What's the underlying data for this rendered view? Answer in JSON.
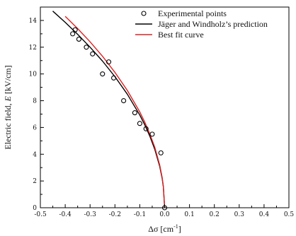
{
  "chart_data": {
    "type": "scatter",
    "xlabel_main": "Δσ [cm",
    "xlabel_sup": "-1",
    "xlabel_end": "]",
    "ylabel_prefix": "Electric field, ",
    "ylabel_var": "E",
    "ylabel_suffix": " [kV/cm]",
    "xlim": [
      -0.5,
      0.5
    ],
    "ylim": [
      0,
      15
    ],
    "xticks": [
      -0.5,
      -0.4,
      -0.3,
      -0.2,
      -0.1,
      0.0,
      0.1,
      0.2,
      0.3,
      0.4,
      0.5
    ],
    "xtick_labels": [
      "-0.5",
      "-0.4",
      "-0.3",
      "-0.2",
      "-0.1",
      "0.0",
      "0.1",
      "0.2",
      "0.3",
      "0.4",
      "0.5"
    ],
    "yticks": [
      0,
      2,
      4,
      6,
      8,
      10,
      12,
      14
    ],
    "ytick_labels": [
      "0",
      "2",
      "4",
      "6",
      "8",
      "10",
      "12",
      "14"
    ],
    "grid": false,
    "legend_position": "top-right",
    "series": [
      {
        "name": "Experimental points",
        "kind": "scatter",
        "marker": "open-circle",
        "color": "#000000",
        "x": [
          -0.37,
          -0.36,
          -0.345,
          -0.315,
          -0.29,
          -0.25,
          -0.225,
          -0.205,
          -0.165,
          -0.12,
          -0.1,
          -0.075,
          -0.05,
          -0.015,
          0.0
        ],
        "y": [
          13.0,
          13.3,
          12.6,
          12.0,
          11.5,
          10.0,
          10.9,
          9.7,
          8.0,
          7.1,
          6.3,
          5.9,
          5.5,
          4.1,
          0.0
        ]
      },
      {
        "name": "Jäger and Windholz’s prediction",
        "kind": "line",
        "color": "#000000",
        "x": [
          0.0,
          -0.005,
          -0.01,
          -0.02,
          -0.04,
          -0.06,
          -0.08,
          -0.1,
          -0.15,
          -0.2,
          -0.25,
          -0.3,
          -0.35,
          -0.4,
          -0.45
        ],
        "y": [
          0.0,
          1.55,
          2.19,
          3.1,
          4.38,
          5.37,
          6.2,
          6.93,
          8.49,
          9.8,
          10.96,
          12.0,
          12.96,
          13.86,
          14.7
        ]
      },
      {
        "name": "Best fit curve",
        "kind": "line",
        "color": "#e02020",
        "x": [
          0.0,
          -0.005,
          -0.01,
          -0.02,
          -0.04,
          -0.06,
          -0.08,
          -0.1,
          -0.15,
          -0.2,
          -0.25,
          -0.3,
          -0.35,
          -0.4
        ],
        "y": [
          0.0,
          1.6,
          2.26,
          3.2,
          4.53,
          5.54,
          6.4,
          7.16,
          8.77,
          10.12,
          11.32,
          12.4,
          13.39,
          14.31
        ]
      }
    ]
  }
}
